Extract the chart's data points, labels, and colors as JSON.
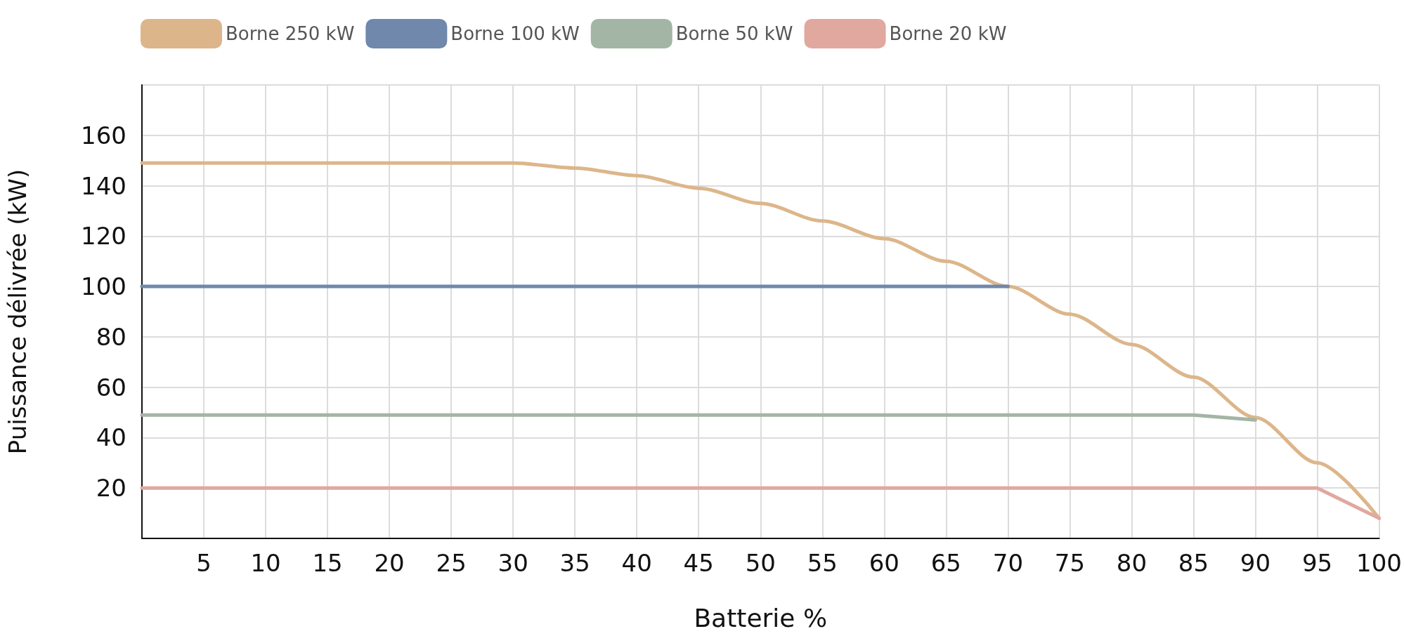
{
  "chart_data": {
    "type": "line",
    "xlabel": "Batterie %",
    "ylabel": "Puissance délivrée (kW)",
    "xlim": [
      0,
      100
    ],
    "xticks": [
      {
        "value": 0,
        "label": null
      },
      5,
      10,
      15,
      20,
      25,
      30,
      35,
      40,
      45,
      50,
      55,
      60,
      65,
      70,
      75,
      80,
      85,
      90,
      95,
      100
    ],
    "ylim": [
      0,
      180
    ],
    "yticks": [
      {
        "value": 0,
        "label": null
      },
      20,
      40,
      60,
      80,
      100,
      120,
      140,
      160,
      {
        "value": 180,
        "label": null
      }
    ],
    "grid": true,
    "legend": "top left",
    "marker": "none",
    "line_style": "solid",
    "series": [
      {
        "name": "Borne 250 kW",
        "color": "#dcb68a",
        "x": [
          0,
          5,
          10,
          15,
          20,
          25,
          30,
          35,
          40,
          45,
          50,
          55,
          60,
          65,
          70,
          75,
          80,
          85,
          90,
          95,
          100
        ],
        "values": [
          149,
          149,
          149,
          149,
          149,
          149,
          149,
          147,
          144,
          139,
          133,
          126,
          119,
          110,
          100,
          89,
          77,
          64,
          48,
          30,
          8
        ]
      },
      {
        "name": "Borne 100 kW",
        "color": "#6f88ab",
        "x": [
          0,
          70
        ],
        "values": [
          100,
          100
        ]
      },
      {
        "name": "Borne 50 kW",
        "color": "#a3b5a4",
        "x": [
          0,
          85,
          90
        ],
        "values": [
          49,
          49,
          47
        ]
      },
      {
        "name": "Borne 20 kW",
        "color": "#e0a89f",
        "x": [
          0,
          95,
          100
        ],
        "values": [
          20,
          20,
          8
        ]
      }
    ]
  }
}
